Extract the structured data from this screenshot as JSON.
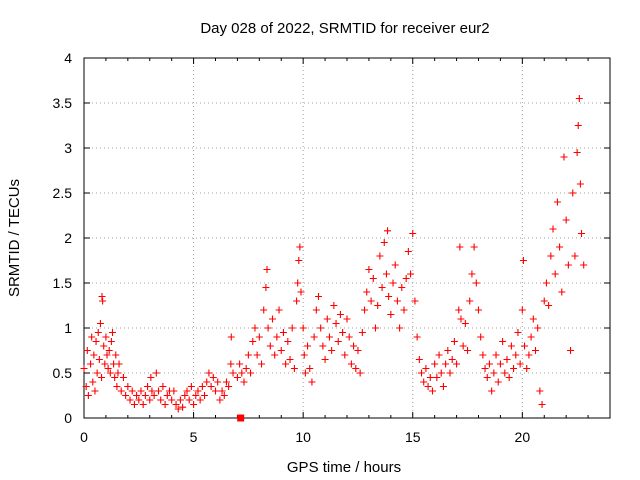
{
  "chart_data": {
    "type": "scatter",
    "title": "Day 028 of 2022, SRMTID for receiver eur2",
    "xlabel": "GPS time / hours",
    "ylabel": "SRMTID / TECUs",
    "xlim": [
      0,
      24
    ],
    "ylim": [
      0,
      4
    ],
    "xticks": [
      0,
      5,
      10,
      15,
      20
    ],
    "xtick_labels": [
      "0",
      "5",
      "10",
      "15",
      "20"
    ],
    "yticks": [
      0,
      0.5,
      1,
      1.5,
      2,
      2.5,
      3,
      3.5,
      4
    ],
    "ytick_labels": [
      "0",
      "0.5",
      "1",
      "1.5",
      "2",
      "2.5",
      "3",
      "3.5",
      "4"
    ],
    "grid": true,
    "marker": "plus",
    "color": "#ff0000",
    "series": [
      {
        "name": "SRMTID",
        "points": [
          [
            0.0,
            0.55
          ],
          [
            0.1,
            0.35
          ],
          [
            0.15,
            0.75
          ],
          [
            0.2,
            0.25
          ],
          [
            0.3,
            0.6
          ],
          [
            0.35,
            0.9
          ],
          [
            0.4,
            0.4
          ],
          [
            0.45,
            0.7
          ],
          [
            0.5,
            0.3
          ],
          [
            0.55,
            0.85
          ],
          [
            0.6,
            0.5
          ],
          [
            0.65,
            0.95
          ],
          [
            0.7,
            0.65
          ],
          [
            0.75,
            1.05
          ],
          [
            0.8,
            0.45
          ],
          [
            0.82,
            1.35
          ],
          [
            0.85,
            1.3
          ],
          [
            0.9,
            0.8
          ],
          [
            0.95,
            0.6
          ],
          [
            1.0,
            0.9
          ],
          [
            1.05,
            0.7
          ],
          [
            1.1,
            0.55
          ],
          [
            1.15,
            0.75
          ],
          [
            1.2,
            0.5
          ],
          [
            1.25,
            0.85
          ],
          [
            1.3,
            0.95
          ],
          [
            1.35,
            0.6
          ],
          [
            1.4,
            0.45
          ],
          [
            1.45,
            0.7
          ],
          [
            1.5,
            0.35
          ],
          [
            1.55,
            0.5
          ],
          [
            1.6,
            0.6
          ],
          [
            1.7,
            0.3
          ],
          [
            1.8,
            0.45
          ],
          [
            1.9,
            0.25
          ],
          [
            2.0,
            0.35
          ],
          [
            2.1,
            0.2
          ],
          [
            2.2,
            0.3
          ],
          [
            2.3,
            0.15
          ],
          [
            2.4,
            0.25
          ],
          [
            2.5,
            0.2
          ],
          [
            2.6,
            0.3
          ],
          [
            2.7,
            0.15
          ],
          [
            2.8,
            0.25
          ],
          [
            2.9,
            0.35
          ],
          [
            3.0,
            0.2
          ],
          [
            3.05,
            0.45
          ],
          [
            3.1,
            0.3
          ],
          [
            3.2,
            0.25
          ],
          [
            3.3,
            0.5
          ],
          [
            3.4,
            0.3
          ],
          [
            3.5,
            0.2
          ],
          [
            3.6,
            0.35
          ],
          [
            3.7,
            0.15
          ],
          [
            3.8,
            0.25
          ],
          [
            3.9,
            0.3
          ],
          [
            4.0,
            0.2
          ],
          [
            4.1,
            0.3
          ],
          [
            4.2,
            0.15
          ],
          [
            4.3,
            0.1
          ],
          [
            4.4,
            0.2
          ],
          [
            4.5,
            0.12
          ],
          [
            4.6,
            0.25
          ],
          [
            4.7,
            0.3
          ],
          [
            4.8,
            0.2
          ],
          [
            4.9,
            0.35
          ],
          [
            5.0,
            0.15
          ],
          [
            5.1,
            0.25
          ],
          [
            5.2,
            0.3
          ],
          [
            5.3,
            0.2
          ],
          [
            5.4,
            0.35
          ],
          [
            5.5,
            0.25
          ],
          [
            5.6,
            0.4
          ],
          [
            5.7,
            0.5
          ],
          [
            5.8,
            0.35
          ],
          [
            5.9,
            0.45
          ],
          [
            6.0,
            0.3
          ],
          [
            6.1,
            0.4
          ],
          [
            6.2,
            0.2
          ],
          [
            6.3,
            0.3
          ],
          [
            6.4,
            0.25
          ],
          [
            6.5,
            0.4
          ],
          [
            6.6,
            0.35
          ],
          [
            6.7,
            0.6
          ],
          [
            6.72,
            0.9
          ],
          [
            6.8,
            0.5
          ],
          [
            7.0,
            0.45
          ],
          [
            7.1,
            0.6
          ],
          [
            7.2,
            0.5
          ],
          [
            7.3,
            0.4
          ],
          [
            7.4,
            0.55
          ],
          [
            7.5,
            0.7
          ],
          [
            7.6,
            0.5
          ],
          [
            7.7,
            0.85
          ],
          [
            7.8,
            1.0
          ],
          [
            7.9,
            0.7
          ],
          [
            8.0,
            0.9
          ],
          [
            8.1,
            0.6
          ],
          [
            8.2,
            1.2
          ],
          [
            8.3,
            1.45
          ],
          [
            8.35,
            1.65
          ],
          [
            8.4,
            1.0
          ],
          [
            8.5,
            0.8
          ],
          [
            8.6,
            1.1
          ],
          [
            8.7,
            0.7
          ],
          [
            8.8,
            0.9
          ],
          [
            8.9,
            1.2
          ],
          [
            9.0,
            0.75
          ],
          [
            9.1,
            0.95
          ],
          [
            9.2,
            0.6
          ],
          [
            9.3,
            0.85
          ],
          [
            9.4,
            0.65
          ],
          [
            9.5,
            1.0
          ],
          [
            9.6,
            0.55
          ],
          [
            9.7,
            1.3
          ],
          [
            9.75,
            1.5
          ],
          [
            9.8,
            1.75
          ],
          [
            9.85,
            1.9
          ],
          [
            9.9,
            1.4
          ],
          [
            10.0,
            1.0
          ],
          [
            10.05,
            0.7
          ],
          [
            10.1,
            0.5
          ],
          [
            10.2,
            0.8
          ],
          [
            10.3,
            0.55
          ],
          [
            10.4,
            0.4
          ],
          [
            10.5,
            0.9
          ],
          [
            10.6,
            1.2
          ],
          [
            10.7,
            1.35
          ],
          [
            10.8,
            1.0
          ],
          [
            10.9,
            0.8
          ],
          [
            11.0,
            0.65
          ],
          [
            11.1,
            1.1
          ],
          [
            11.2,
            0.9
          ],
          [
            11.3,
            0.75
          ],
          [
            11.4,
            1.25
          ],
          [
            11.5,
            1.05
          ],
          [
            11.6,
            0.85
          ],
          [
            11.7,
            1.15
          ],
          [
            11.8,
            0.95
          ],
          [
            11.9,
            0.7
          ],
          [
            12.0,
            1.1
          ],
          [
            12.1,
            0.9
          ],
          [
            12.2,
            0.6
          ],
          [
            12.3,
            0.8
          ],
          [
            12.4,
            0.55
          ],
          [
            12.5,
            0.75
          ],
          [
            12.6,
            0.5
          ],
          [
            12.7,
            0.95
          ],
          [
            12.8,
            1.2
          ],
          [
            12.9,
            1.4
          ],
          [
            13.0,
            1.65
          ],
          [
            13.1,
            1.3
          ],
          [
            13.2,
            1.55
          ],
          [
            13.3,
            1.0
          ],
          [
            13.4,
            1.25
          ],
          [
            13.5,
            1.8
          ],
          [
            13.6,
            1.45
          ],
          [
            13.7,
            1.95
          ],
          [
            13.8,
            1.6
          ],
          [
            13.85,
            2.08
          ],
          [
            13.9,
            1.35
          ],
          [
            14.0,
            1.15
          ],
          [
            14.1,
            1.5
          ],
          [
            14.2,
            1.7
          ],
          [
            14.3,
            1.3
          ],
          [
            14.4,
            1.0
          ],
          [
            14.5,
            1.45
          ],
          [
            14.6,
            1.2
          ],
          [
            14.7,
            1.55
          ],
          [
            14.8,
            1.85
          ],
          [
            14.9,
            1.6
          ],
          [
            15.0,
            2.05
          ],
          [
            15.1,
            1.3
          ],
          [
            15.2,
            0.9
          ],
          [
            15.3,
            0.65
          ],
          [
            15.4,
            0.5
          ],
          [
            15.5,
            0.4
          ],
          [
            15.6,
            0.55
          ],
          [
            15.7,
            0.35
          ],
          [
            15.8,
            0.45
          ],
          [
            15.9,
            0.3
          ],
          [
            16.0,
            0.6
          ],
          [
            16.1,
            0.45
          ],
          [
            16.2,
            0.7
          ],
          [
            16.3,
            0.5
          ],
          [
            16.4,
            0.35
          ],
          [
            16.5,
            0.6
          ],
          [
            16.6,
            0.75
          ],
          [
            16.7,
            0.5
          ],
          [
            16.8,
            0.65
          ],
          [
            16.9,
            0.85
          ],
          [
            17.0,
            0.6
          ],
          [
            17.1,
            1.2
          ],
          [
            17.15,
            1.9
          ],
          [
            17.2,
            1.1
          ],
          [
            17.3,
            0.8
          ],
          [
            17.4,
            1.05
          ],
          [
            17.5,
            0.75
          ],
          [
            17.6,
            1.3
          ],
          [
            17.7,
            1.6
          ],
          [
            17.8,
            1.9
          ],
          [
            17.9,
            1.5
          ],
          [
            18.0,
            1.2
          ],
          [
            18.1,
            0.9
          ],
          [
            18.2,
            0.7
          ],
          [
            18.3,
            0.55
          ],
          [
            18.4,
            0.45
          ],
          [
            18.5,
            0.6
          ],
          [
            18.6,
            0.3
          ],
          [
            18.7,
            0.5
          ],
          [
            18.8,
            0.7
          ],
          [
            18.9,
            0.4
          ],
          [
            19.0,
            0.6
          ],
          [
            19.1,
            0.85
          ],
          [
            19.2,
            0.5
          ],
          [
            19.3,
            0.65
          ],
          [
            19.4,
            0.45
          ],
          [
            19.5,
            0.8
          ],
          [
            19.6,
            0.55
          ],
          [
            19.7,
            0.7
          ],
          [
            19.8,
            0.95
          ],
          [
            19.9,
            0.6
          ],
          [
            20.0,
            1.2
          ],
          [
            20.05,
            1.75
          ],
          [
            20.1,
            0.8
          ],
          [
            20.2,
            0.55
          ],
          [
            20.3,
            0.7
          ],
          [
            20.4,
            0.9
          ],
          [
            20.5,
            1.1
          ],
          [
            20.6,
            0.75
          ],
          [
            20.7,
            1.0
          ],
          [
            20.8,
            0.3
          ],
          [
            20.9,
            0.15
          ],
          [
            21.0,
            1.3
          ],
          [
            21.1,
            1.5
          ],
          [
            21.2,
            1.25
          ],
          [
            21.3,
            1.8
          ],
          [
            21.4,
            2.1
          ],
          [
            21.5,
            1.6
          ],
          [
            21.6,
            2.4
          ],
          [
            21.7,
            1.9
          ],
          [
            21.8,
            1.4
          ],
          [
            21.9,
            2.9
          ],
          [
            22.0,
            2.2
          ],
          [
            22.1,
            1.7
          ],
          [
            22.2,
            0.75
          ],
          [
            22.3,
            2.5
          ],
          [
            22.4,
            1.8
          ],
          [
            22.5,
            2.95
          ],
          [
            22.55,
            3.25
          ],
          [
            22.6,
            3.55
          ],
          [
            22.65,
            2.6
          ],
          [
            22.7,
            2.05
          ],
          [
            22.8,
            1.7
          ]
        ]
      }
    ],
    "highlight_point": {
      "x": 7.15,
      "y": 0.0
    }
  }
}
